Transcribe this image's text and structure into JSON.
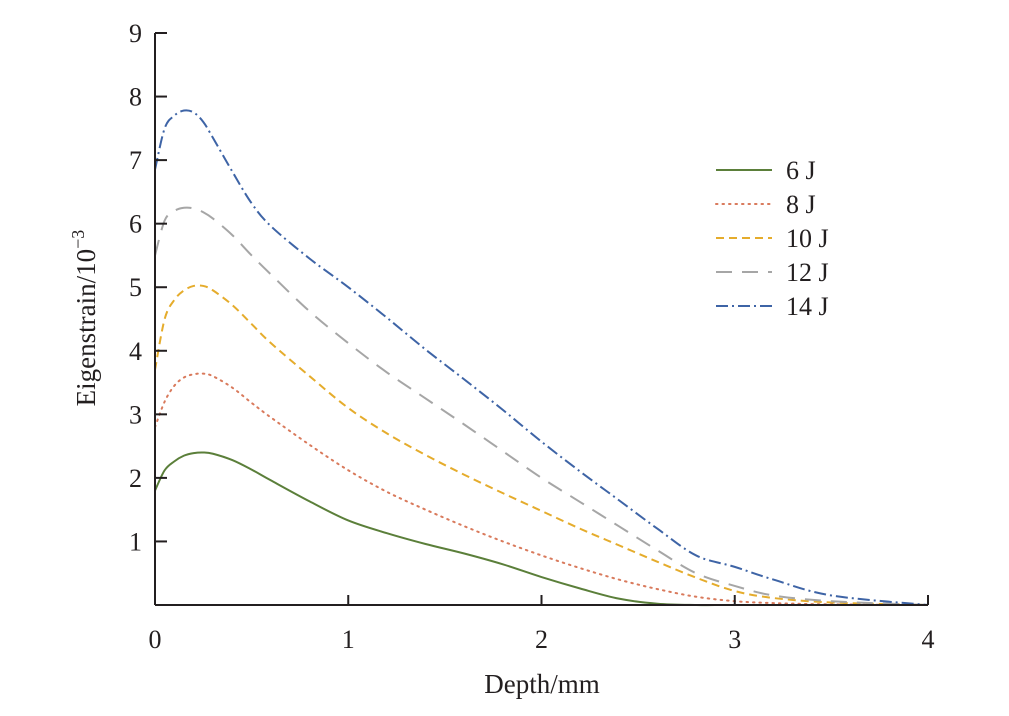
{
  "chart_data": {
    "type": "line",
    "title": "",
    "xlabel": "Depth/mm",
    "ylabel_main": "Eigenstrain/10",
    "ylabel_exp": "−3",
    "xlim": [
      0,
      4
    ],
    "ylim": [
      0,
      9
    ],
    "xticks": [
      "0",
      "1",
      "2",
      "3",
      "4"
    ],
    "yticks": [
      "1",
      "2",
      "3",
      "4",
      "5",
      "6",
      "7",
      "8",
      "9"
    ],
    "grid": false,
    "legend_position": "right",
    "series": [
      {
        "name": "6 J",
        "color": "#5b7f3a",
        "dash": "solid",
        "x": [
          0,
          0.05,
          0.1,
          0.15,
          0.2,
          0.25,
          0.3,
          0.4,
          0.5,
          0.6,
          0.8,
          1.0,
          1.2,
          1.4,
          1.6,
          1.8,
          2.0,
          2.2,
          2.4,
          2.6,
          2.8,
          3.0,
          3.5,
          4.0
        ],
        "y": [
          1.8,
          2.12,
          2.26,
          2.35,
          2.39,
          2.4,
          2.38,
          2.28,
          2.13,
          1.96,
          1.63,
          1.33,
          1.13,
          0.96,
          0.81,
          0.64,
          0.44,
          0.26,
          0.1,
          0.02,
          0.0,
          0.0,
          0.0,
          0.0
        ]
      },
      {
        "name": "8 J",
        "color": "#d97a5c",
        "dash": "dotted",
        "x": [
          0,
          0.05,
          0.1,
          0.15,
          0.2,
          0.25,
          0.3,
          0.4,
          0.5,
          0.6,
          0.8,
          1.0,
          1.2,
          1.4,
          1.6,
          1.8,
          2.0,
          2.2,
          2.4,
          2.6,
          2.8,
          3.0,
          3.2,
          3.5,
          4.0
        ],
        "y": [
          2.8,
          3.2,
          3.45,
          3.58,
          3.63,
          3.64,
          3.6,
          3.42,
          3.18,
          2.95,
          2.52,
          2.12,
          1.78,
          1.5,
          1.24,
          1.0,
          0.78,
          0.58,
          0.4,
          0.25,
          0.13,
          0.06,
          0.03,
          0.01,
          0.0
        ]
      },
      {
        "name": "10 J",
        "color": "#e5ac2c",
        "dash": "dashed",
        "x": [
          0,
          0.05,
          0.1,
          0.15,
          0.2,
          0.25,
          0.3,
          0.4,
          0.5,
          0.6,
          0.8,
          1.0,
          1.2,
          1.4,
          1.6,
          1.8,
          2.0,
          2.2,
          2.4,
          2.6,
          2.8,
          3.0,
          3.2,
          3.5,
          4.0
        ],
        "y": [
          3.7,
          4.5,
          4.8,
          4.95,
          5.02,
          5.02,
          4.95,
          4.72,
          4.42,
          4.12,
          3.6,
          3.1,
          2.7,
          2.36,
          2.05,
          1.76,
          1.48,
          1.2,
          0.94,
          0.68,
          0.43,
          0.22,
          0.11,
          0.04,
          0.0
        ]
      },
      {
        "name": "12 J",
        "color": "#a6a6a6",
        "dash": "longdash",
        "x": [
          0,
          0.05,
          0.1,
          0.15,
          0.2,
          0.25,
          0.3,
          0.4,
          0.5,
          0.6,
          0.8,
          1.0,
          1.2,
          1.4,
          1.6,
          1.8,
          2.0,
          2.2,
          2.4,
          2.6,
          2.8,
          3.0,
          3.2,
          3.5,
          4.0
        ],
        "y": [
          5.5,
          6.05,
          6.2,
          6.25,
          6.24,
          6.18,
          6.08,
          5.82,
          5.5,
          5.2,
          4.62,
          4.12,
          3.66,
          3.25,
          2.84,
          2.42,
          2.0,
          1.62,
          1.24,
          0.86,
          0.5,
          0.3,
          0.15,
          0.06,
          0.0
        ]
      },
      {
        "name": "14 J",
        "color": "#3e64a6",
        "dash": "dashdot",
        "x": [
          0,
          0.05,
          0.1,
          0.15,
          0.2,
          0.25,
          0.3,
          0.4,
          0.5,
          0.6,
          0.8,
          1.0,
          1.2,
          1.4,
          1.6,
          1.8,
          2.0,
          2.2,
          2.4,
          2.6,
          2.8,
          3.0,
          3.2,
          3.5,
          4.0
        ],
        "y": [
          6.85,
          7.5,
          7.7,
          7.78,
          7.75,
          7.6,
          7.35,
          6.82,
          6.32,
          5.96,
          5.45,
          5.0,
          4.52,
          4.02,
          3.55,
          3.07,
          2.57,
          2.1,
          1.65,
          1.2,
          0.78,
          0.6,
          0.4,
          0.15,
          0.0
        ]
      }
    ]
  }
}
